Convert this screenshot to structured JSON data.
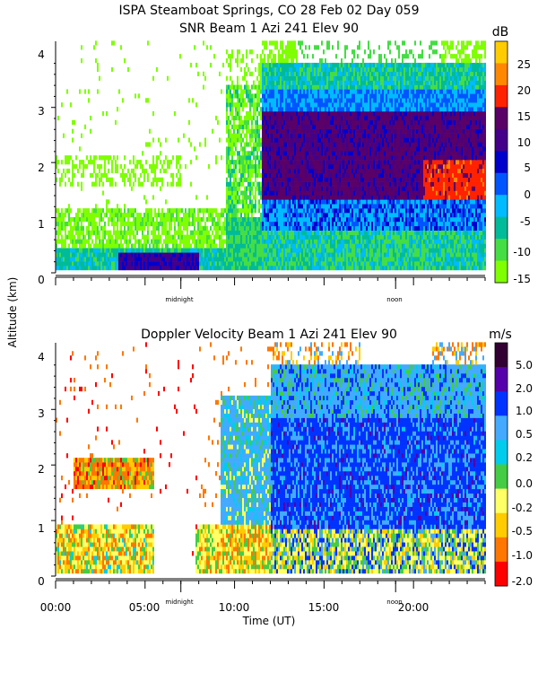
{
  "header": {
    "title_line1": "ISPA Steamboat Springs, CO  28 Feb 02 Day 059"
  },
  "y_axis_label": "Altitude (km)",
  "colors": {
    "snr_scale": [
      "#7fff00",
      "#44dd44",
      "#00bb99",
      "#00bbff",
      "#0055ff",
      "#0000cc",
      "#440088",
      "#5a0066",
      "#ff2200",
      "#ff8800",
      "#ffcc00"
    ],
    "vel_scale": [
      "#ff0000",
      "#ff7700",
      "#ffcc00",
      "#ffff66",
      "#44cc44",
      "#00ccee",
      "#44aaff",
      "#0033ff",
      "#5500aa",
      "#330033"
    ]
  },
  "chart_data": [
    {
      "type": "heatmap",
      "title": "SNR Beam 1 Azi 241 Elev 90",
      "ylabel": "Altitude (km)",
      "ylim": [
        0,
        4.25
      ],
      "y_ticks": [
        "0",
        "1",
        "2",
        "3",
        "4"
      ],
      "x_markers": [
        "midnight",
        "noon"
      ],
      "colorbar_unit": "dB",
      "colorbar_ticks": [
        "25",
        "20",
        "15",
        "10",
        "5",
        "0",
        "-5",
        "-10",
        "-15"
      ],
      "colorbar_range": [
        -15,
        30
      ]
    },
    {
      "type": "heatmap",
      "title": "Doppler Velocity Beam 1 Azi 241 Elev 90",
      "xlabel": "Time (UT)",
      "ylabel": "Altitude (km)",
      "ylim": [
        0,
        4.25
      ],
      "xlim": [
        0,
        24
      ],
      "y_ticks": [
        "0",
        "1",
        "2",
        "3",
        "4"
      ],
      "x_tick_labels": [
        "00:00",
        "05:00",
        "10:00",
        "15:00",
        "20:00"
      ],
      "x_markers": [
        "midnight",
        "noon"
      ],
      "colorbar_unit": "m/s",
      "colorbar_ticks": [
        "5.0",
        "2.0",
        "1.0",
        "0.5",
        "0.2",
        "0.0",
        "-0.2",
        "-0.5",
        "-1.0",
        "-2.0"
      ]
    }
  ]
}
